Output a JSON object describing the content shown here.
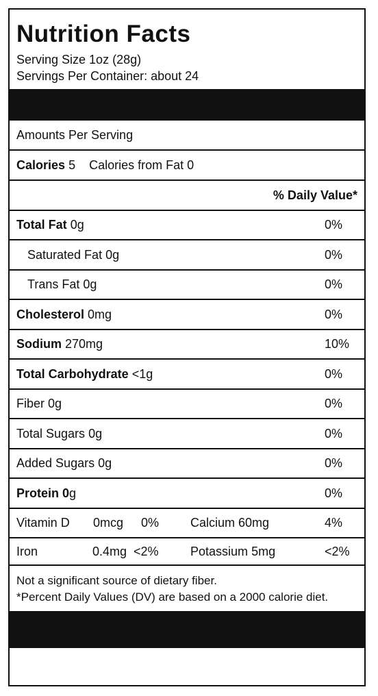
{
  "title": "Nutrition Facts",
  "serving_size": "Serving Size 1oz (28g)",
  "servings_per_container": "Servings Per Container: about 24",
  "amounts_per_serving": "Amounts Per Serving",
  "calories": {
    "label": "Calories",
    "value": "5",
    "from_fat": "Calories from Fat 0"
  },
  "daily_value_header": "% Daily Value*",
  "nutrients": [
    {
      "name": "Total Fat",
      "amount": "0g",
      "dv": "0%"
    },
    {
      "name": "Saturated Fat",
      "amount": "0g",
      "dv": "0%"
    },
    {
      "name": "Trans Fat",
      "amount": "0g",
      "dv": "0%"
    },
    {
      "name": "Cholesterol",
      "amount": "0mg",
      "dv": "0%"
    },
    {
      "name": "Sodium",
      "amount": "270mg",
      "dv": "10%"
    },
    {
      "name": "Total Carbohydrate",
      "amount": "<1g",
      "dv": "0%"
    },
    {
      "name": "Fiber",
      "amount": "0g",
      "dv": "0%"
    },
    {
      "name": "Total Sugars",
      "amount": "0g",
      "dv": "0%"
    },
    {
      "name": "Added Sugars",
      "amount": "0g",
      "dv": "0%"
    },
    {
      "name": "Protein",
      "amount": "0",
      "unit": "g",
      "dv": "0%"
    }
  ],
  "vitamins": [
    {
      "left_name": "Vitamin D",
      "left_amount": "0mcg",
      "left_dv": "0%",
      "right_name": "Calcium",
      "right_amount": "60mg",
      "right_dv": "4%"
    },
    {
      "left_name": "Iron",
      "left_amount": "0.4mg",
      "left_dv": "<2%",
      "right_name": "Potassium",
      "right_amount": "5mg",
      "right_dv": "<2%"
    }
  ],
  "footnotes": [
    "Not a significant source of dietary fiber.",
    "*Percent Daily Values (DV) are based on a 2000 calorie diet."
  ]
}
